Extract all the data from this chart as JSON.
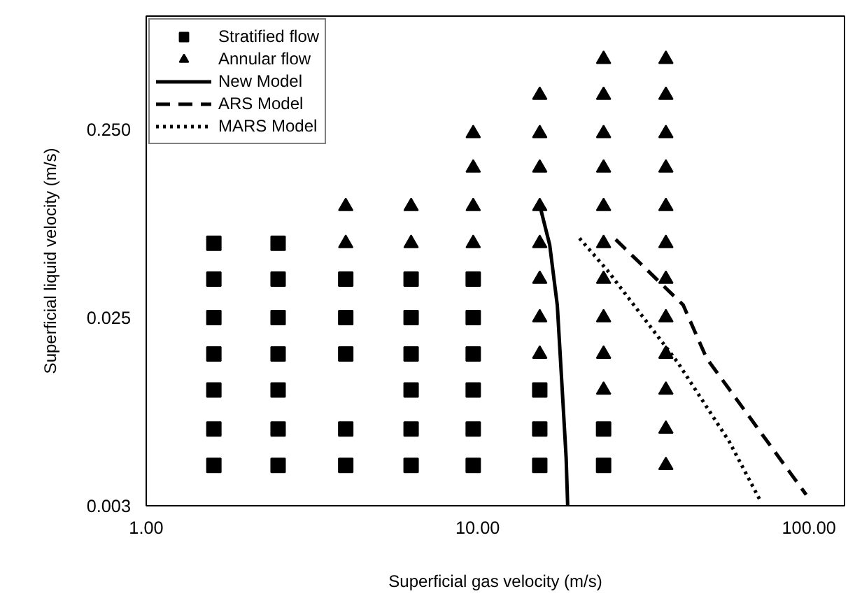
{
  "chart_data": {
    "type": "scatter",
    "xlabel": "Superficial gas velocity (m/s)",
    "ylabel": "Superficial liquid velocity (m/s)",
    "log": "xy",
    "grid": false,
    "legend": "top left",
    "xlim": [
      1,
      128
    ],
    "ylim": [
      0.0025,
      1
    ],
    "xticks": [
      {
        "value": 1,
        "label": "1.00"
      },
      {
        "value": 10,
        "label": "10.00"
      },
      {
        "value": 100,
        "label": "100.00"
      }
    ],
    "yticks": [
      {
        "value": 0.0025,
        "label": "0.003"
      },
      {
        "value": 0.025,
        "label": "0.025"
      },
      {
        "value": 0.25,
        "label": "0.250"
      }
    ],
    "series": [
      {
        "name": "Stratified flow",
        "marker": "square",
        "color": "#000000",
        "x": [
          1.6,
          2.5,
          1.6,
          2.5,
          4,
          6.3,
          9.7,
          1.6,
          2.5,
          4,
          6.3,
          9.7,
          1.6,
          2.5,
          4,
          6.3,
          9.7,
          1.6,
          2.5,
          6.3,
          9.7,
          15.4,
          1.6,
          2.5,
          4,
          6.3,
          9.7,
          15.4,
          24,
          1.6,
          2.5,
          4,
          6.3,
          9.7,
          15.4,
          24
        ],
        "values": [
          0.062,
          0.062,
          0.04,
          0.04,
          0.04,
          0.04,
          0.04,
          0.025,
          0.025,
          0.025,
          0.025,
          0.025,
          0.016,
          0.016,
          0.016,
          0.016,
          0.016,
          0.0103,
          0.0103,
          0.0103,
          0.0103,
          0.0103,
          0.0064,
          0.0064,
          0.0064,
          0.0064,
          0.0064,
          0.0064,
          0.0064,
          0.0041,
          0.0041,
          0.0041,
          0.0041,
          0.0041,
          0.0041,
          0.0041
        ]
      },
      {
        "name": "Annular flow",
        "marker": "triangle",
        "color": "#000000",
        "x": [
          24,
          37,
          15.4,
          24,
          37,
          9.7,
          15.4,
          24,
          37,
          9.7,
          15.4,
          24,
          37,
          4,
          6.3,
          9.7,
          15.4,
          24,
          37,
          4,
          6.3,
          9.7,
          15.4,
          24,
          37,
          15.4,
          24,
          37,
          15.4,
          24,
          37,
          15.4,
          24,
          37,
          24,
          37,
          37,
          37
        ],
        "values": [
          0.59,
          0.59,
          0.38,
          0.38,
          0.38,
          0.238,
          0.238,
          0.238,
          0.238,
          0.156,
          0.156,
          0.156,
          0.156,
          0.0975,
          0.0975,
          0.0975,
          0.0975,
          0.0975,
          0.0975,
          0.062,
          0.062,
          0.062,
          0.062,
          0.062,
          0.062,
          0.04,
          0.04,
          0.04,
          0.025,
          0.025,
          0.025,
          0.016,
          0.016,
          0.016,
          0.0103,
          0.0103,
          0.0064,
          0.0041
        ]
      },
      {
        "name": "New Model",
        "type": "line",
        "line_style": "solid",
        "color": "#000000",
        "x": [
          15.4,
          16.5,
          17.4,
          18.0,
          18.5,
          18.7
        ],
        "values": [
          0.0988,
          0.061,
          0.029,
          0.0104,
          0.0045,
          0.0025
        ]
      },
      {
        "name": "ARS Model",
        "type": "line",
        "line_style": "dashed",
        "color": "#000000",
        "x": [
          26.1,
          41.7,
          49.1,
          98.1
        ],
        "values": [
          0.065,
          0.0292,
          0.0152,
          0.00286
        ]
      },
      {
        "name": "MARS Model",
        "type": "line",
        "line_style": "dotted",
        "color": "#000000",
        "x": [
          20.3,
          24.6,
          40.1,
          57.4,
          71.8
        ],
        "values": [
          0.066,
          0.0447,
          0.0145,
          0.0055,
          0.0026
        ]
      }
    ]
  }
}
